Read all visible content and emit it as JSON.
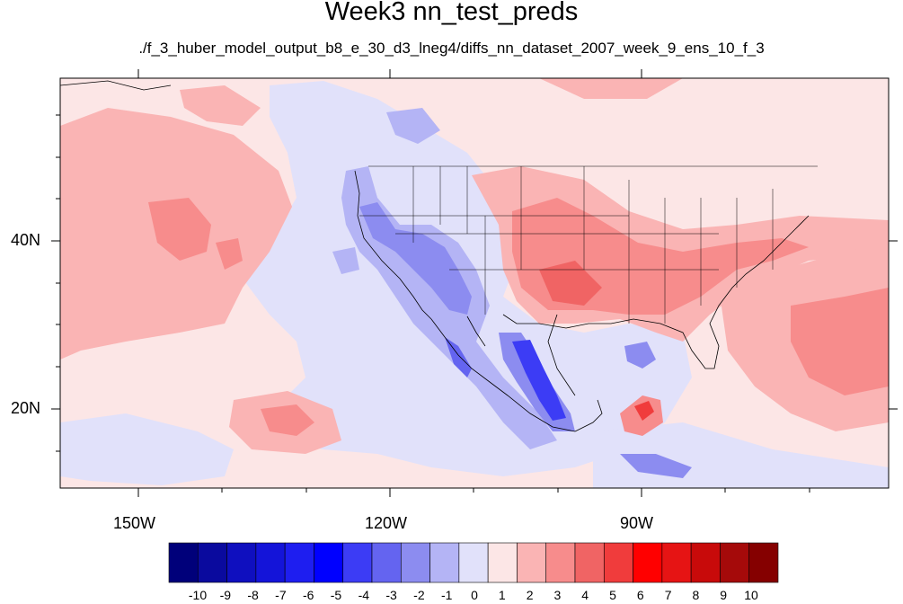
{
  "title": "Week3 nn_test_preds",
  "subtitle": "./f_3_huber_model_output_b8_e_30_d3_lneg4/diffs_nn_dataset_2007_week_9_ens_10_f_3",
  "lon_labels": [
    "150W",
    "120W",
    "90W"
  ],
  "lat_labels": [
    "40N",
    "20N"
  ],
  "colorbar": {
    "labels": [
      "-10",
      "-9",
      "-8",
      "-7",
      "-6",
      "-5",
      "-4",
      "-3",
      "-2",
      "-1",
      "0",
      "1",
      "2",
      "3",
      "4",
      "5",
      "6",
      "7",
      "8",
      "9",
      "10"
    ],
    "colors": [
      "#00007a",
      "#0a0a9e",
      "#0f0fbf",
      "#1414d9",
      "#1e1ef0",
      "#0000ff",
      "#3c3cf5",
      "#6464f0",
      "#8c8cf0",
      "#b4b4f5",
      "#e1e1fa",
      "#fce6e6",
      "#fab4b4",
      "#f78c8c",
      "#f06464",
      "#f03c3c",
      "#ff0000",
      "#e61414",
      "#c80a0a",
      "#a50a0a",
      "#850000"
    ]
  },
  "map": {
    "colors": {
      "ocean_light_red": "#fce6e6",
      "light_blue": "#e1e1fa",
      "red1": "#fab4b4",
      "red2": "#f78c8c",
      "red3": "#f06464",
      "red4": "#f03c3c",
      "blue1": "#b4b4f5",
      "blue2": "#8c8cf0",
      "blue3": "#6464f0",
      "blue4": "#3c3cf5"
    }
  }
}
